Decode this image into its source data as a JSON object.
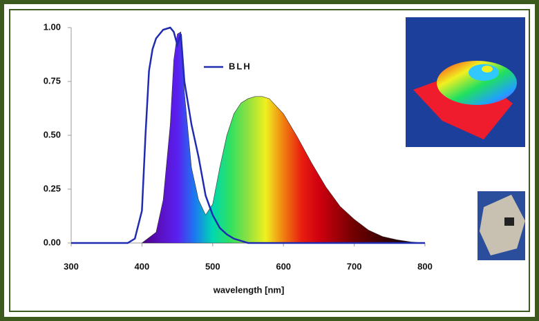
{
  "chart_data": {
    "type": "line",
    "xlabel": "wavelength [nm]",
    "xlim": [
      300,
      800
    ],
    "xticks": [
      300,
      400,
      500,
      600,
      700,
      800
    ],
    "ylim": [
      0,
      1
    ],
    "yticks": [
      {
        "value": 0,
        "label": "0.00"
      },
      {
        "value": 0.25,
        "label": "0.25"
      },
      {
        "value": 0.5,
        "label": "0.50"
      },
      {
        "value": 0.75,
        "label": "0.75"
      },
      {
        "value": 1,
        "label": "1.00"
      }
    ],
    "grid": false,
    "legend": "top-center",
    "series": [
      {
        "type": "area",
        "gradient": [
          "#4b0082",
          "#5a10c0",
          "#5a20f0",
          "#1a7af0",
          "#00d8b0",
          "#30e060",
          "#90e040",
          "#f0f020",
          "#f08010",
          "#e82010",
          "#d00010",
          "#a00008",
          "#700000",
          "#500000",
          "#300000",
          "#1a0000",
          "#100000"
        ],
        "x": [
          400,
          420,
          430,
          440,
          445,
          450,
          455,
          460,
          470,
          480,
          490,
          500,
          510,
          520,
          530,
          540,
          550,
          560,
          570,
          580,
          600,
          620,
          640,
          660,
          680,
          700,
          720,
          740,
          760,
          780,
          800
        ],
        "values": [
          0,
          0.05,
          0.2,
          0.55,
          0.85,
          0.97,
          0.98,
          0.7,
          0.35,
          0.2,
          0.13,
          0.18,
          0.35,
          0.5,
          0.6,
          0.65,
          0.67,
          0.68,
          0.68,
          0.67,
          0.6,
          0.49,
          0.37,
          0.26,
          0.17,
          0.11,
          0.06,
          0.03,
          0.015,
          0.005,
          0
        ]
      },
      {
        "type": "line",
        "name": "BLH",
        "color": "#1f2bb0",
        "x": [
          300,
          380,
          390,
          400,
          405,
          410,
          415,
          420,
          430,
          440,
          445,
          450,
          455,
          460,
          470,
          480,
          490,
          500,
          510,
          520,
          530,
          550,
          800
        ],
        "values": [
          0,
          0,
          0.02,
          0.15,
          0.5,
          0.8,
          0.9,
          0.95,
          0.99,
          1.0,
          0.98,
          0.92,
          0.97,
          0.75,
          0.55,
          0.4,
          0.22,
          0.13,
          0.07,
          0.04,
          0.02,
          0,
          0
        ]
      }
    ]
  }
}
